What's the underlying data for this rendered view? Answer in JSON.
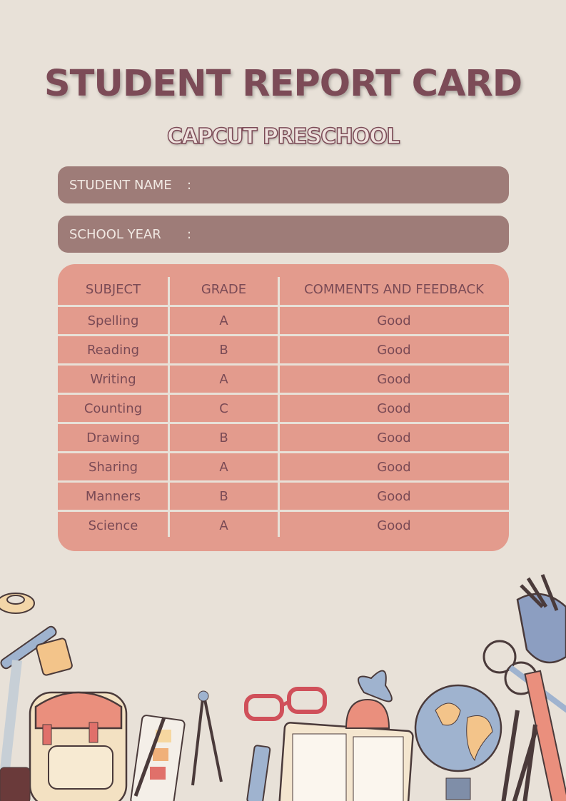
{
  "title": "STUDENT REPORT CARD",
  "school": "CAPCUT PRESCHOOL",
  "fields": [
    {
      "label": "STUDENT NAME",
      "sep": ":",
      "value": ""
    },
    {
      "label": "SCHOOL YEAR",
      "sep": ":",
      "value": ""
    }
  ],
  "table": {
    "headers": [
      "SUBJECT",
      "GRADE",
      "COMMENTS AND FEEDBACK"
    ],
    "rows": [
      [
        "Spelling",
        "A",
        "Good"
      ],
      [
        "Reading",
        "B",
        "Good"
      ],
      [
        "Writing",
        "A",
        "Good"
      ],
      [
        "Counting",
        "C",
        "Good"
      ],
      [
        "Drawing",
        "B",
        "Good"
      ],
      [
        "Sharing",
        "A",
        "Good"
      ],
      [
        "Manners",
        "B",
        "Good"
      ],
      [
        "Science",
        "A",
        "Good"
      ]
    ]
  },
  "colors": {
    "background": "#e8e1d8",
    "title": "#7c4b57",
    "field": "#9e7c78",
    "table": "#e39b8d"
  }
}
